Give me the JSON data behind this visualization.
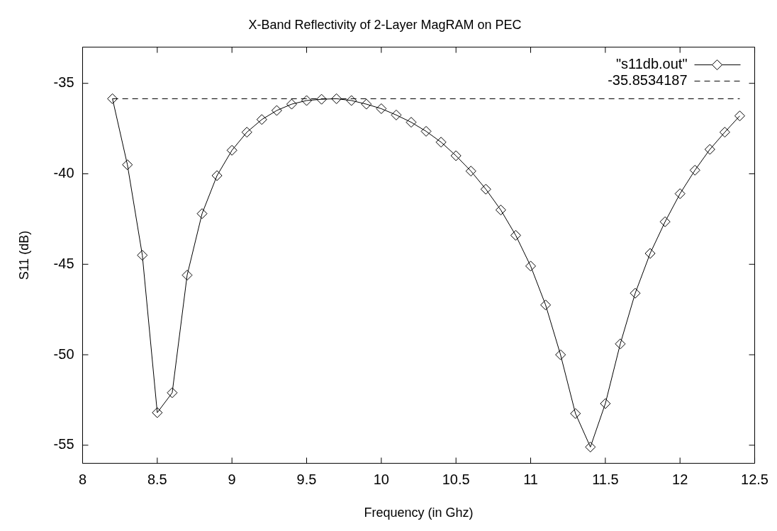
{
  "chart_data": {
    "type": "line",
    "title": "X-Band Reflectivity of 2-Layer MagRAM on PEC",
    "xlabel": "Frequency (in Ghz)",
    "ylabel": "S11 (dB)",
    "x": [
      8.2,
      8.3,
      8.4,
      8.5,
      8.6,
      8.7,
      8.8,
      8.9,
      9.0,
      9.1,
      9.2,
      9.3,
      9.4,
      9.5,
      9.6,
      9.7,
      9.8,
      9.9,
      10.0,
      10.1,
      10.2,
      10.3,
      10.4,
      10.5,
      10.6,
      10.7,
      10.8,
      10.9,
      11.0,
      11.1,
      11.2,
      11.3,
      11.4,
      11.5,
      11.6,
      11.7,
      11.8,
      11.9,
      12.0,
      12.1,
      12.2,
      12.3,
      12.4
    ],
    "series": [
      {
        "name": "\"s11db.out\"",
        "color": "#000000",
        "values": [
          -35.85,
          -39.5,
          -44.5,
          -53.2,
          -52.1,
          -45.6,
          -42.2,
          -40.1,
          -38.7,
          -37.7,
          -37.0,
          -36.5,
          -36.15,
          -35.95,
          -35.88,
          -35.85,
          -35.95,
          -36.15,
          -36.4,
          -36.75,
          -37.15,
          -37.65,
          -38.25,
          -39.0,
          -39.85,
          -40.85,
          -42.0,
          -43.4,
          -45.1,
          -47.25,
          -50.0,
          -53.25,
          -55.1,
          -52.7,
          -49.4,
          -46.6,
          -44.4,
          -42.65,
          -41.1,
          -39.8,
          -38.65,
          -37.7,
          -36.8
        ]
      }
    ],
    "ref_lines": [
      {
        "axis": "y",
        "value": -35.8534187,
        "label": "-35.8534187",
        "color": "#000000",
        "line_style": "dashed"
      }
    ],
    "xlim": [
      8,
      12.5
    ],
    "xticks": [
      8,
      8.5,
      9,
      9.5,
      10,
      10.5,
      11,
      11.5,
      12,
      12.5
    ],
    "ylim": [
      -56,
      -33
    ],
    "yticks": [
      -55,
      -50,
      -45,
      -40,
      -35
    ],
    "grid": false,
    "legend": "top right",
    "marker": "diamond",
    "line_style": "solid"
  }
}
